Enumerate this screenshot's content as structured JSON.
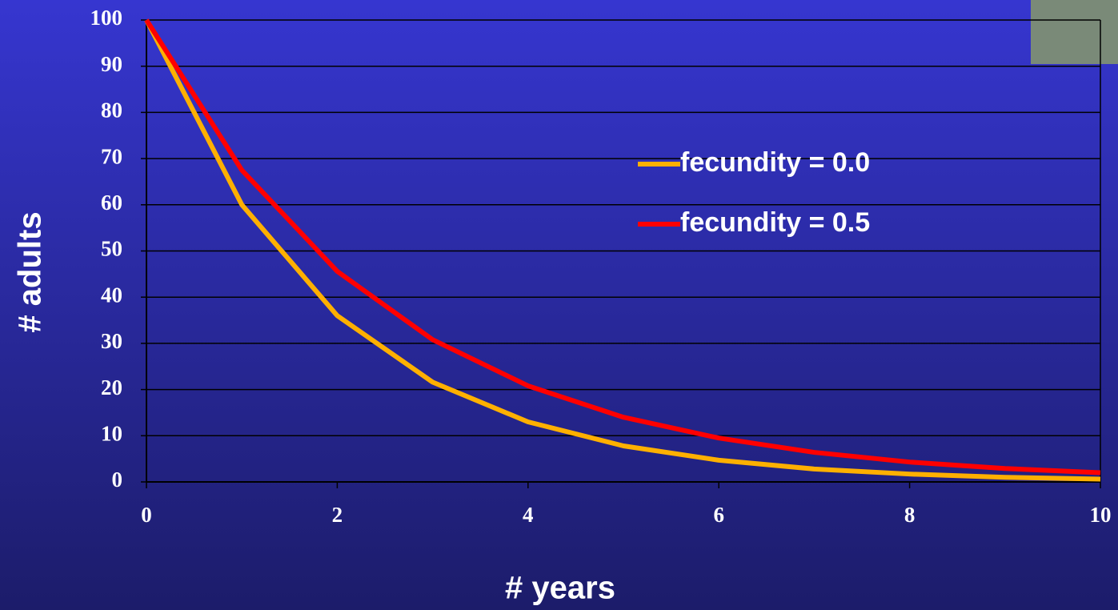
{
  "chart_data": {
    "type": "line",
    "x_label": "# years",
    "y_label": "# adults",
    "x": [
      0,
      1,
      2,
      3,
      4,
      5,
      6,
      7,
      8,
      9,
      10
    ],
    "series": [
      {
        "name": "fecundity = 0.0",
        "color": "#ffb000",
        "values": [
          100,
          60,
          36,
          21.6,
          13,
          7.8,
          4.7,
          2.8,
          1.7,
          1,
          0.6
        ]
      },
      {
        "name": "fecundity = 0.5",
        "color": "#ff0000",
        "values": [
          100,
          67.5,
          45.6,
          30.8,
          20.8,
          14,
          9.5,
          6.4,
          4.3,
          2.9,
          2
        ]
      }
    ],
    "xlim": [
      0,
      10
    ],
    "xticks": [
      0,
      2,
      4,
      6,
      8,
      10
    ],
    "ylim": [
      0,
      100
    ],
    "yticks": [
      0,
      10,
      20,
      30,
      40,
      50,
      60,
      70,
      80,
      90,
      100
    ],
    "grid": true
  }
}
